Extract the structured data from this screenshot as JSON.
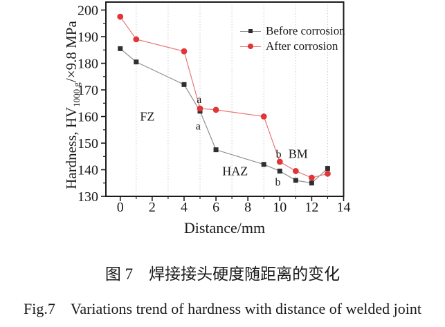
{
  "figure": {
    "captions": {
      "chinese": "图 7　焊接接头硬度随距离的变化",
      "english": "Fig.7 Variations trend of hardness with distance of welded joint"
    }
  },
  "chart_data": {
    "type": "line",
    "x": [
      0,
      1,
      4,
      5,
      6,
      9,
      10,
      11,
      12,
      13
    ],
    "series": [
      {
        "name": "Before corrosion",
        "marker": "square",
        "marker_color": "#2f2f2f",
        "line_color": "#8f8f8f",
        "values": [
          185.5,
          180.5,
          172,
          162,
          147.5,
          142,
          139.5,
          136,
          135,
          140.5
        ]
      },
      {
        "name": "After corrosion",
        "marker": "circle",
        "marker_color": "#e13538",
        "line_color": "#e87575",
        "values": [
          197.5,
          189,
          184.5,
          163,
          162.5,
          160,
          143,
          139.5,
          137,
          138.5
        ]
      }
    ],
    "xlabel": "Distance/mm",
    "ylabel": {
      "pre": "Hardness, HV",
      "sub": "1000 g",
      "post": "/×9.8 MPa"
    },
    "xlim": [
      -0.9,
      14
    ],
    "ylim": [
      130,
      203
    ],
    "xticks": [
      0,
      2,
      4,
      6,
      8,
      10,
      12,
      14
    ],
    "xticks_minor": [
      1,
      3,
      5,
      7,
      9,
      11,
      13
    ],
    "yticks": [
      130,
      140,
      150,
      160,
      170,
      180,
      190,
      200
    ],
    "yticks_minor": [
      135,
      145,
      155,
      165,
      175,
      185,
      195
    ],
    "grid_x": [
      1,
      3,
      5,
      7,
      9,
      11,
      13
    ],
    "legend": {
      "position": "top-right"
    },
    "annotations": [
      {
        "text": "FZ",
        "x": 1.7,
        "y": 160,
        "kind": "region"
      },
      {
        "text": "HAZ",
        "x": 7.2,
        "y": 139.5,
        "kind": "region"
      },
      {
        "text": "BM",
        "x": 11.15,
        "y": 146,
        "kind": "region"
      },
      {
        "text": "a",
        "x": 4.95,
        "y": 166.5,
        "kind": "point"
      },
      {
        "text": "a",
        "x": 4.88,
        "y": 156.5,
        "kind": "point"
      },
      {
        "text": "b",
        "x": 9.93,
        "y": 146,
        "kind": "point"
      },
      {
        "text": "b",
        "x": 9.88,
        "y": 135.5,
        "kind": "point"
      }
    ],
    "grid": "vertical-dotted",
    "colors": {
      "axis": "#1a1a1a",
      "grid": "#c8c8c8",
      "text": "#1a1a1a"
    }
  }
}
